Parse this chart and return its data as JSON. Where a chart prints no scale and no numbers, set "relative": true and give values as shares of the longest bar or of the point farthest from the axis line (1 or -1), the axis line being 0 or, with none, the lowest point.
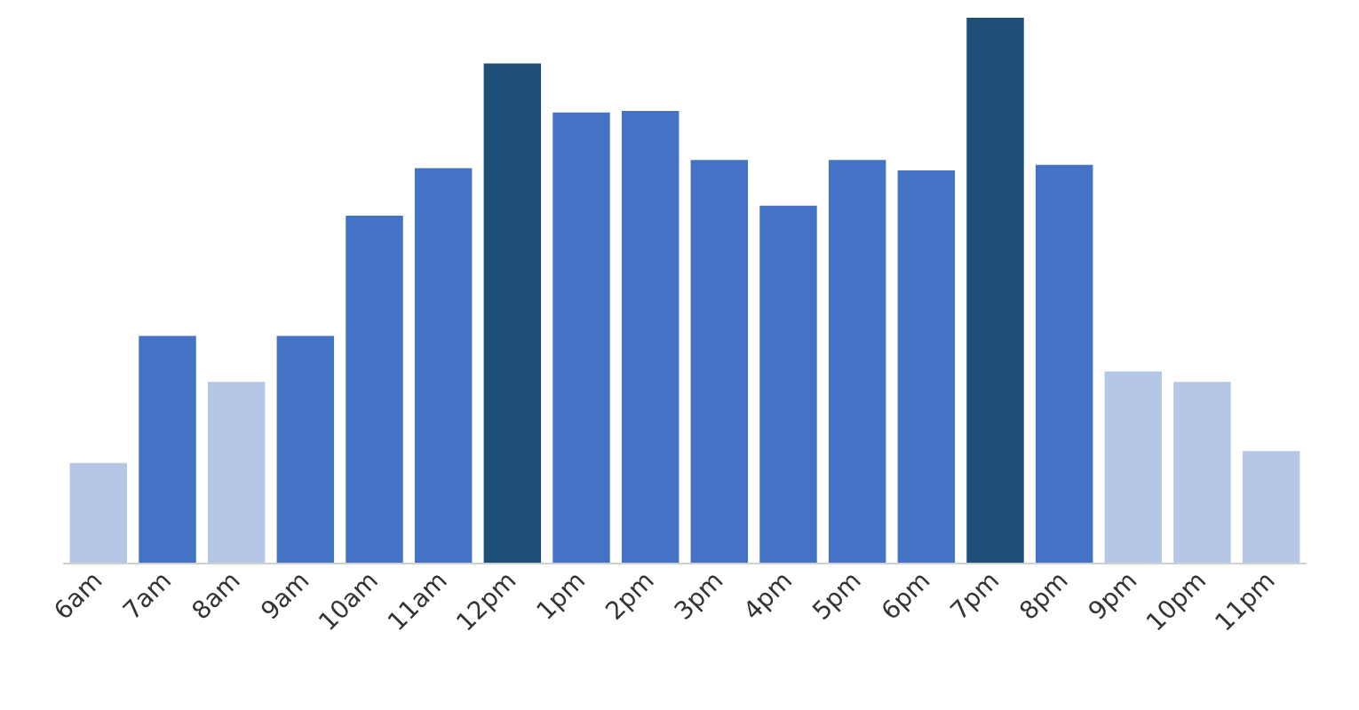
{
  "chart_data": {
    "type": "bar",
    "relative": true,
    "categories": [
      "6am",
      "7am",
      "8am",
      "9am",
      "10am",
      "11am",
      "12pm",
      "1pm",
      "2pm",
      "3pm",
      "4pm",
      "5pm",
      "6pm",
      "7pm",
      "8pm",
      "9pm",
      "10pm",
      "11pm"
    ],
    "values": [
      0.183,
      0.416,
      0.332,
      0.416,
      0.637,
      0.724,
      0.916,
      0.826,
      0.829,
      0.739,
      0.655,
      0.739,
      0.72,
      1,
      0.73,
      0.351,
      0.332,
      0.205
    ],
    "colors": [
      "#b4c7e7",
      "#4472c4",
      "#b4c7e7",
      "#4472c4",
      "#4472c4",
      "#4472c4",
      "#1f4e79",
      "#4472c4",
      "#4472c4",
      "#4472c4",
      "#4472c4",
      "#4472c4",
      "#4472c4",
      "#1f4e79",
      "#4472c4",
      "#b4c7e7",
      "#b4c7e7",
      "#b4c7e7"
    ],
    "grid": false
  }
}
